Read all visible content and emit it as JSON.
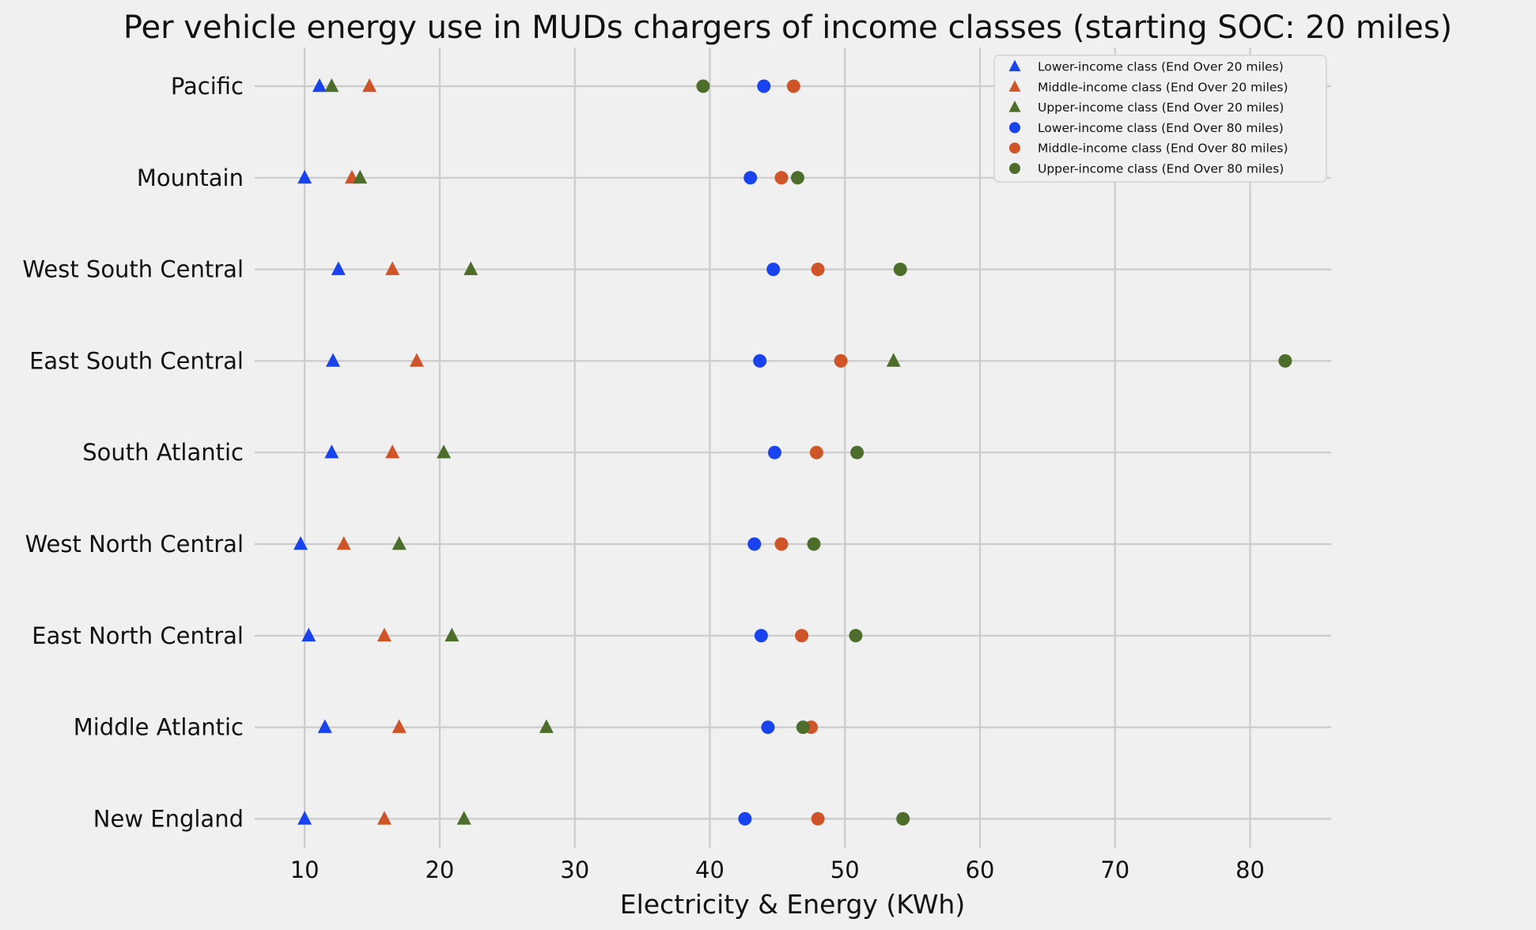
{
  "chart_data": {
    "type": "scatter",
    "title": "Per vehicle energy use in MUDs chargers of income classes (starting SOC: 20 miles)",
    "xlabel": "Electricity & Energy (KWh)",
    "ylabel": "",
    "xlim": [
      6.3,
      86
    ],
    "xticks": [
      10,
      20,
      30,
      40,
      50,
      60,
      70,
      80
    ],
    "grid": true,
    "legend_position": "top-right",
    "categories": [
      "Pacific",
      "Mountain",
      "West South Central",
      "East South Central",
      "South Atlantic",
      "West North Central",
      "East North Central",
      "Middle Atlantic",
      "New England"
    ],
    "series": [
      {
        "name": "Lower-income class (End Over 20 miles)",
        "marker": "triangle",
        "color": "#1a43f0",
        "values": [
          11.1,
          10.0,
          12.5,
          12.1,
          12.0,
          9.7,
          10.3,
          11.5,
          10.0
        ]
      },
      {
        "name": "Middle-income class (End Over 20 miles)",
        "marker": "triangle",
        "color": "#cf5427",
        "values": [
          14.8,
          13.5,
          16.5,
          18.3,
          16.5,
          12.9,
          15.9,
          17.0,
          15.9
        ]
      },
      {
        "name": "Upper-income class (End Over 20 miles)",
        "marker": "triangle",
        "color": "#4d6e2a",
        "values": [
          12.0,
          14.1,
          22.3,
          53.6,
          20.3,
          17.0,
          20.9,
          27.9,
          21.8
        ]
      },
      {
        "name": "Lower-income class (End Over 80 miles)",
        "marker": "circle",
        "color": "#1a43f0",
        "values": [
          44.0,
          43.0,
          44.7,
          43.7,
          44.8,
          43.3,
          43.8,
          44.3,
          42.6
        ]
      },
      {
        "name": "Middle-income class (End Over 80 miles)",
        "marker": "circle",
        "color": "#cf5427",
        "values": [
          46.2,
          45.3,
          48.0,
          49.7,
          47.9,
          45.3,
          46.8,
          47.5,
          48.0
        ]
      },
      {
        "name": "Upper-income class (End Over 80 miles)",
        "marker": "circle",
        "color": "#4d6e2a",
        "values": [
          39.5,
          46.5,
          54.1,
          82.6,
          50.9,
          47.7,
          50.8,
          46.9,
          54.3
        ]
      }
    ]
  }
}
